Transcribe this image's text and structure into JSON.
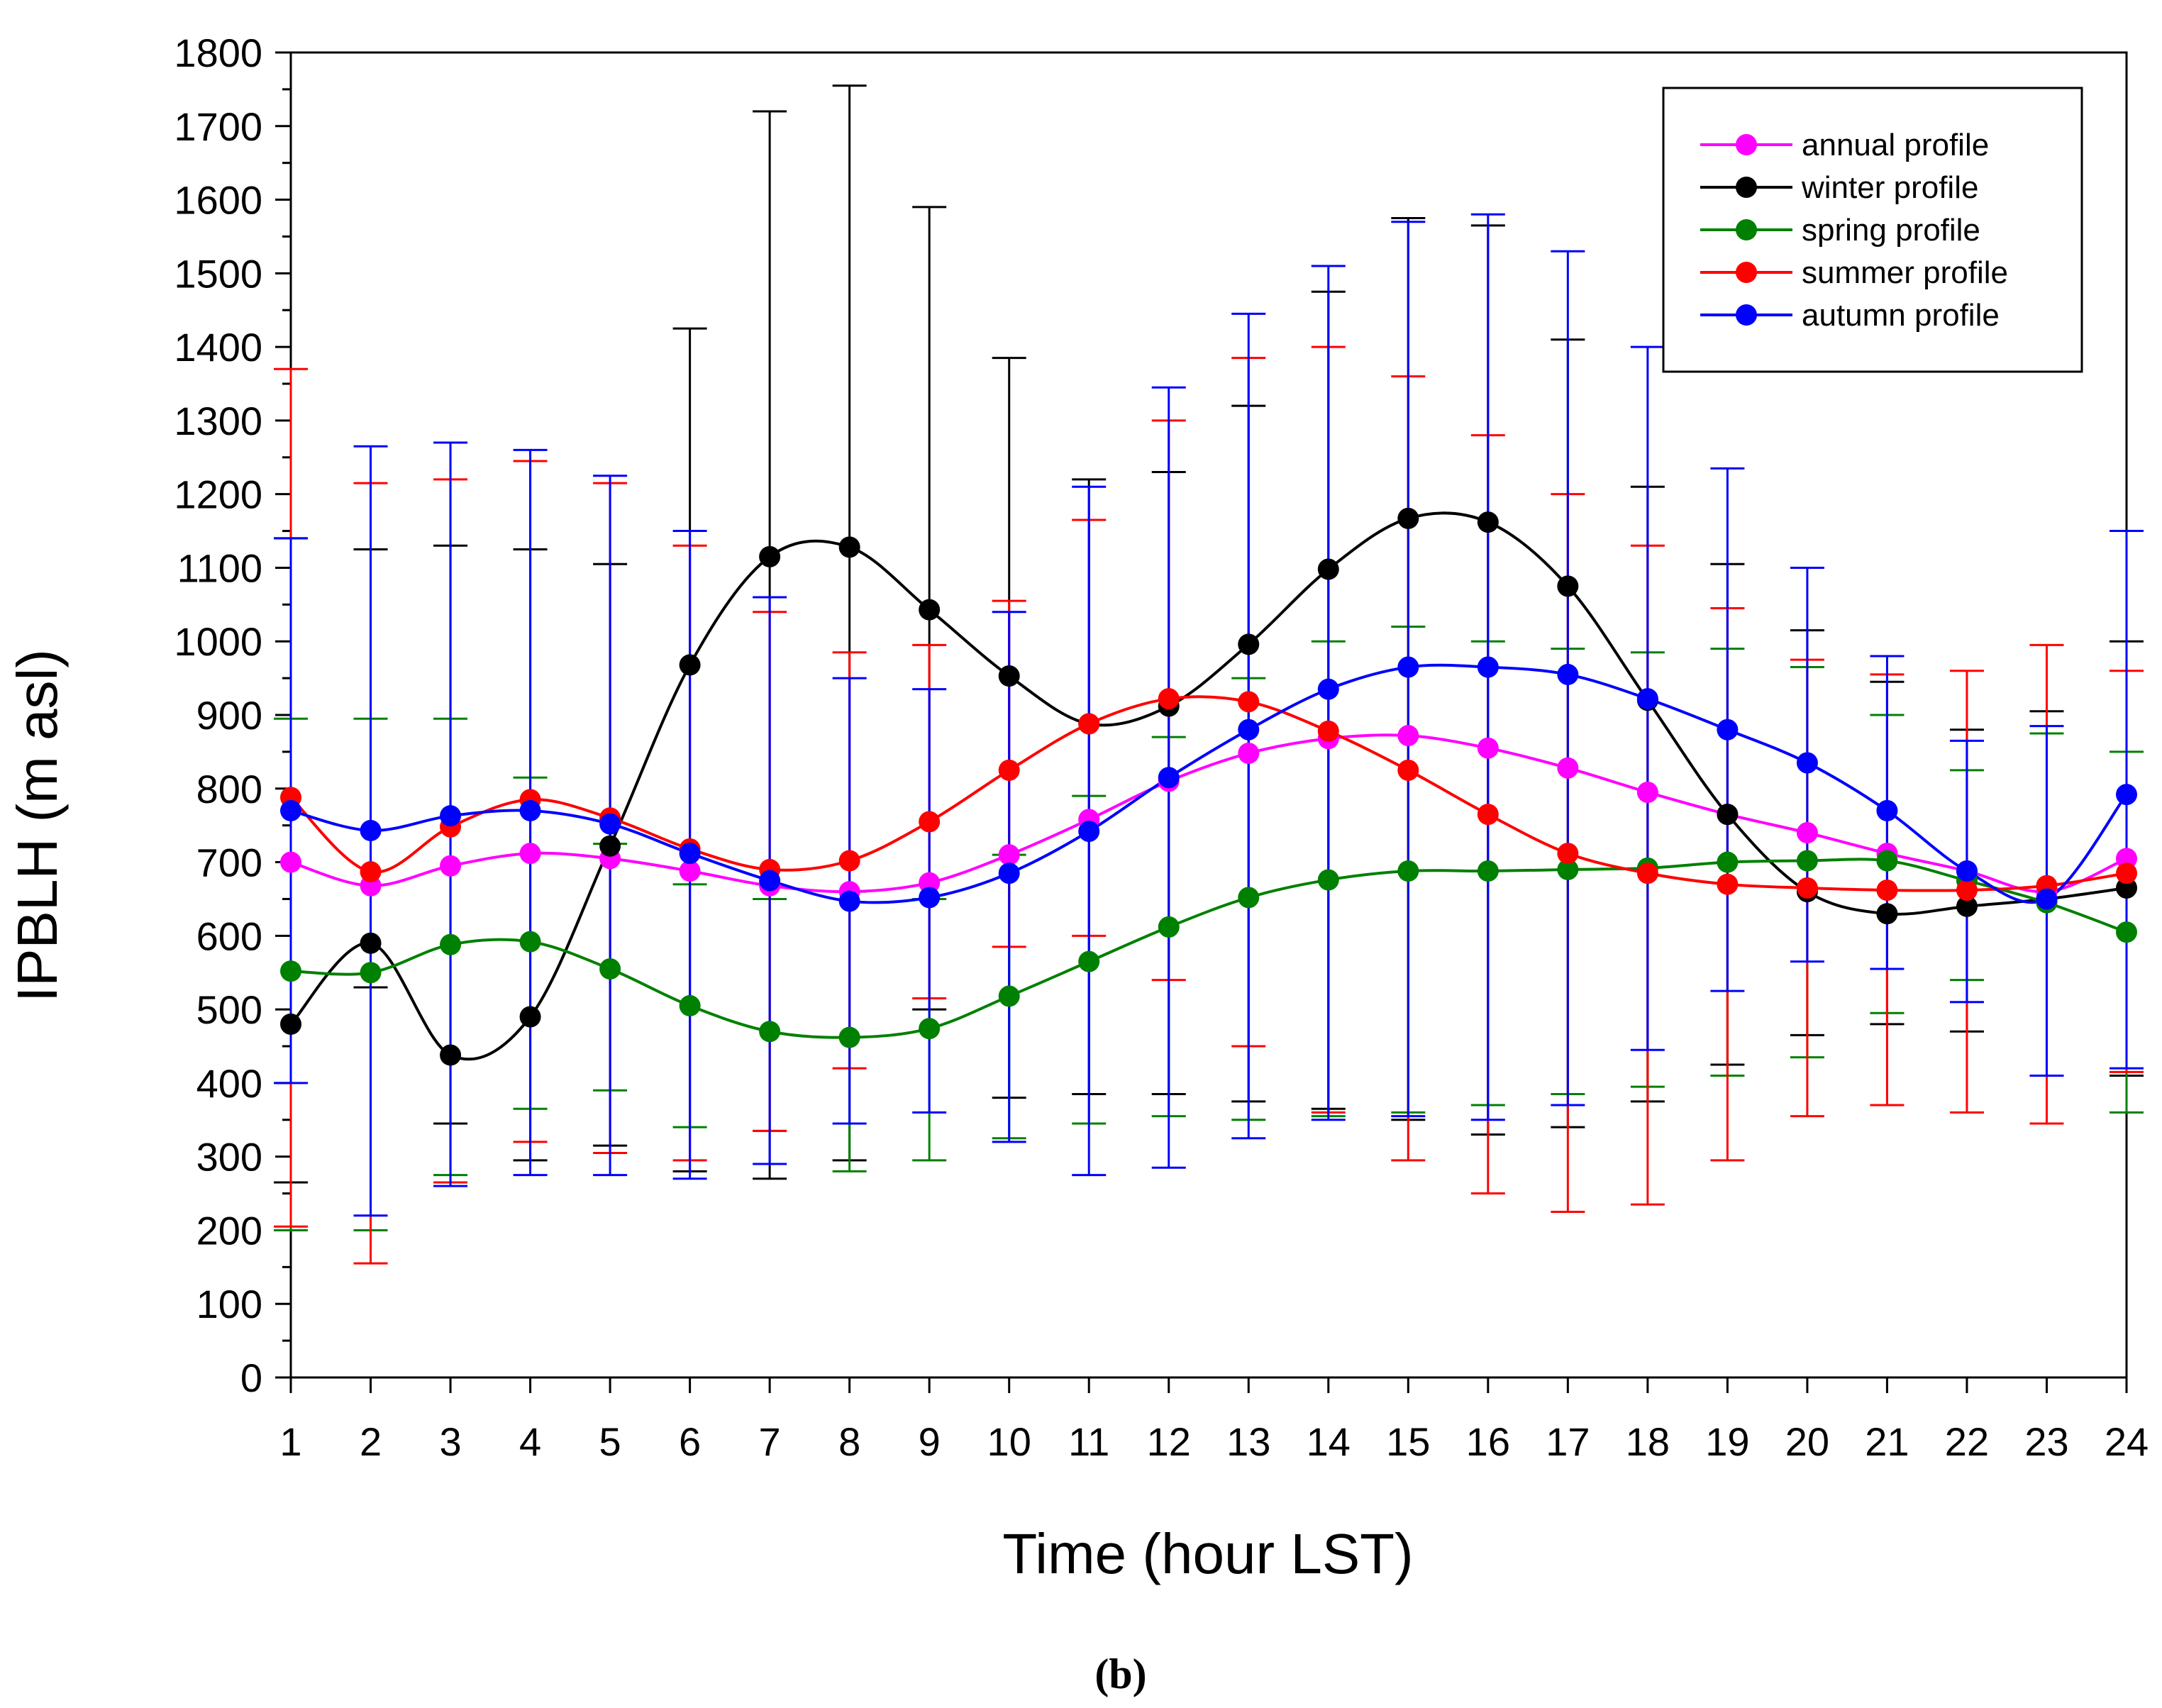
{
  "colors": {
    "annual": "#ff00ff",
    "winter": "#000000",
    "spring": "#008000",
    "summer": "#ff0000",
    "autumn": "#0000ff"
  },
  "panel_label": "(b)",
  "chart_data": {
    "type": "line",
    "title": "",
    "xlabel": "Time (hour LST)",
    "ylabel": "IPBLH (m asl)",
    "x": [
      1,
      2,
      3,
      4,
      5,
      6,
      7,
      8,
      9,
      10,
      11,
      12,
      13,
      14,
      15,
      16,
      17,
      18,
      19,
      20,
      21,
      22,
      23,
      24
    ],
    "xlim": [
      1,
      24
    ],
    "ylim": [
      0,
      1800
    ],
    "y_ticks": [
      0,
      100,
      200,
      300,
      400,
      500,
      600,
      700,
      800,
      900,
      1000,
      1100,
      1200,
      1300,
      1400,
      1500,
      1600,
      1700,
      1800
    ],
    "legend_position": "top-right",
    "grid": false,
    "series": [
      {
        "name": "annual profile",
        "key": "annual",
        "values": [
          700,
          668,
          695,
          712,
          705,
          688,
          668,
          660,
          672,
          710,
          758,
          810,
          848,
          868,
          872,
          855,
          828,
          795,
          765,
          740,
          712,
          688,
          660,
          705
        ]
      },
      {
        "name": "winter profile",
        "key": "winter",
        "values": [
          480,
          590,
          438,
          490,
          722,
          968,
          1115,
          1128,
          1043,
          953,
          888,
          912,
          996,
          1098,
          1167,
          1162,
          1075,
          920,
          765,
          660,
          630,
          640,
          650,
          665
        ],
        "err_low": [
          265,
          530,
          345,
          295,
          315,
          280,
          270,
          295,
          500,
          380,
          385,
          385,
          375,
          365,
          350,
          330,
          340,
          375,
          425,
          465,
          480,
          470,
          410,
          410
        ],
        "err_high": [
          1140,
          1125,
          1130,
          1125,
          1105,
          1425,
          1720,
          1755,
          1590,
          1385,
          1220,
          1230,
          1320,
          1475,
          1575,
          1565,
          1410,
          1210,
          1105,
          1015,
          945,
          880,
          905,
          1000
        ]
      },
      {
        "name": "spring profile",
        "key": "spring",
        "values": [
          552,
          550,
          588,
          592,
          555,
          505,
          470,
          462,
          474,
          518,
          565,
          612,
          652,
          676,
          688,
          688,
          690,
          692,
          700,
          702,
          702,
          675,
          645,
          605
        ],
        "err_low": [
          200,
          200,
          275,
          365,
          390,
          340,
          335,
          280,
          295,
          325,
          345,
          355,
          350,
          355,
          360,
          370,
          385,
          395,
          410,
          435,
          495,
          540,
          410,
          360
        ],
        "err_high": [
          895,
          895,
          895,
          815,
          725,
          670,
          650,
          660,
          650,
          710,
          790,
          870,
          950,
          1000,
          1020,
          1000,
          990,
          985,
          990,
          965,
          900,
          825,
          875,
          850
        ]
      },
      {
        "name": "summer profile",
        "key": "summer",
        "values": [
          788,
          687,
          748,
          785,
          760,
          718,
          690,
          702,
          755,
          825,
          888,
          922,
          918,
          878,
          825,
          765,
          712,
          685,
          670,
          665,
          662,
          662,
          668,
          685
        ],
        "err_low": [
          205,
          155,
          265,
          320,
          305,
          295,
          335,
          420,
          515,
          585,
          600,
          540,
          450,
          360,
          295,
          250,
          225,
          235,
          295,
          355,
          370,
          360,
          345,
          415
        ],
        "err_high": [
          1370,
          1215,
          1220,
          1245,
          1215,
          1130,
          1040,
          985,
          995,
          1055,
          1165,
          1300,
          1385,
          1400,
          1360,
          1280,
          1200,
          1130,
          1045,
          975,
          955,
          960,
          995,
          960
        ]
      },
      {
        "name": "autumn profile",
        "key": "autumn",
        "values": [
          770,
          743,
          763,
          770,
          752,
          712,
          675,
          647,
          652,
          685,
          742,
          815,
          880,
          935,
          965,
          965,
          955,
          922,
          880,
          835,
          770,
          688,
          650,
          792
        ],
        "err_low": [
          400,
          220,
          260,
          275,
          275,
          270,
          290,
          345,
          360,
          320,
          275,
          285,
          325,
          350,
          355,
          350,
          370,
          445,
          525,
          565,
          555,
          510,
          410,
          420
        ],
        "err_high": [
          1140,
          1265,
          1270,
          1260,
          1225,
          1150,
          1060,
          950,
          935,
          1040,
          1210,
          1345,
          1445,
          1510,
          1570,
          1580,
          1530,
          1400,
          1235,
          1100,
          980,
          865,
          885,
          1150
        ]
      }
    ]
  }
}
